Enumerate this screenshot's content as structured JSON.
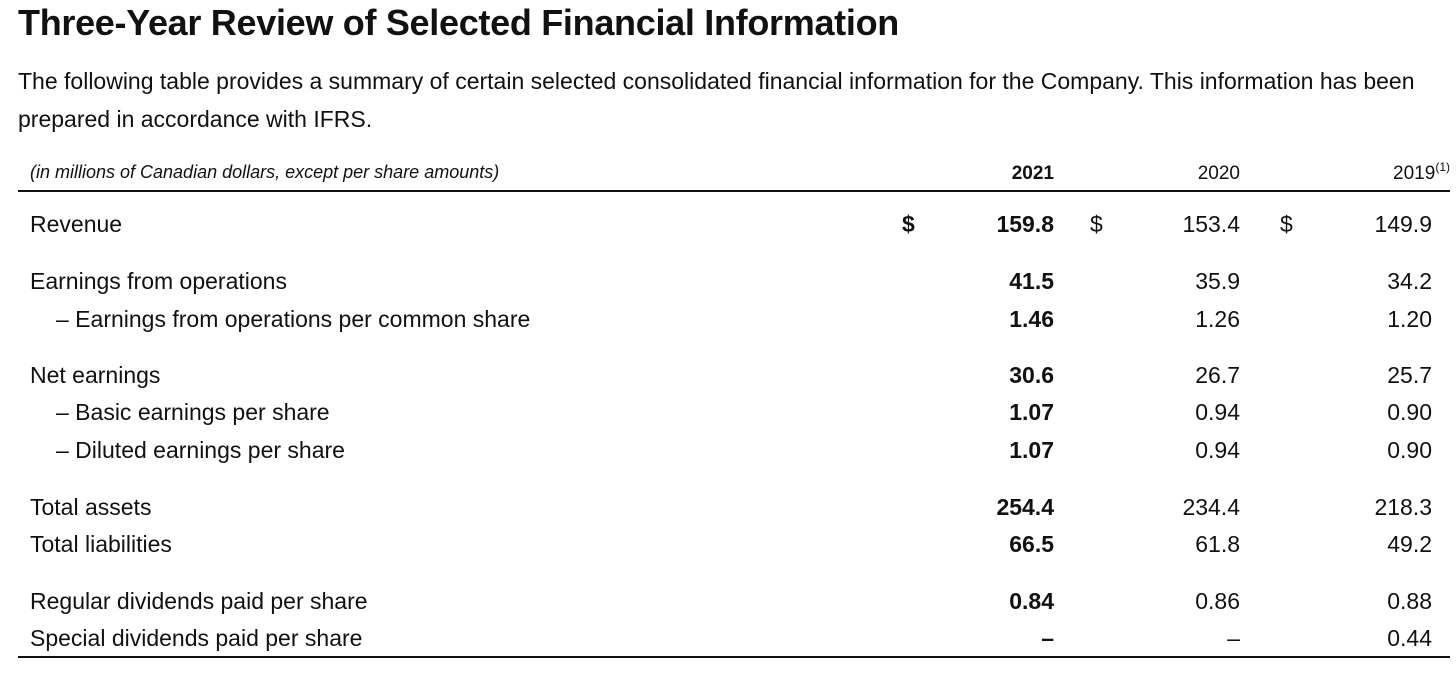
{
  "title": "Three-Year Review of Selected Financial Information",
  "intro": "The following table provides a summary of certain selected consolidated financial information for the Company. This information has been prepared in accordance with IFRS.",
  "table": {
    "units_note": "(in millions of Canadian dollars, except per share amounts)",
    "columns": [
      "2021",
      "2020",
      "2019"
    ],
    "footnote_marker_2019": "(1)",
    "currency_symbol": "$",
    "rows": [
      {
        "label": "Revenue",
        "v2021": "159.8",
        "v2020": "153.4",
        "v2019": "149.9"
      },
      {
        "label": "Earnings from operations",
        "v2021": "41.5",
        "v2020": "35.9",
        "v2019": "34.2"
      },
      {
        "label": "– Earnings from operations per common share",
        "v2021": "1.46",
        "v2020": "1.26",
        "v2019": "1.20"
      },
      {
        "label": "Net earnings",
        "v2021": "30.6",
        "v2020": "26.7",
        "v2019": "25.7"
      },
      {
        "label": "– Basic earnings per share",
        "v2021": "1.07",
        "v2020": "0.94",
        "v2019": "0.90"
      },
      {
        "label": "– Diluted earnings per share",
        "v2021": "1.07",
        "v2020": "0.94",
        "v2019": "0.90"
      },
      {
        "label": "Total assets",
        "v2021": "254.4",
        "v2020": "234.4",
        "v2019": "218.3"
      },
      {
        "label": "Total liabilities",
        "v2021": "66.5",
        "v2020": "61.8",
        "v2019": "49.2"
      },
      {
        "label": "Regular dividends paid per share",
        "v2021": "0.84",
        "v2020": "0.86",
        "v2019": "0.88"
      },
      {
        "label": "Special dividends paid per share",
        "v2021": "–",
        "v2020": "–",
        "v2019": "0.44"
      }
    ]
  }
}
